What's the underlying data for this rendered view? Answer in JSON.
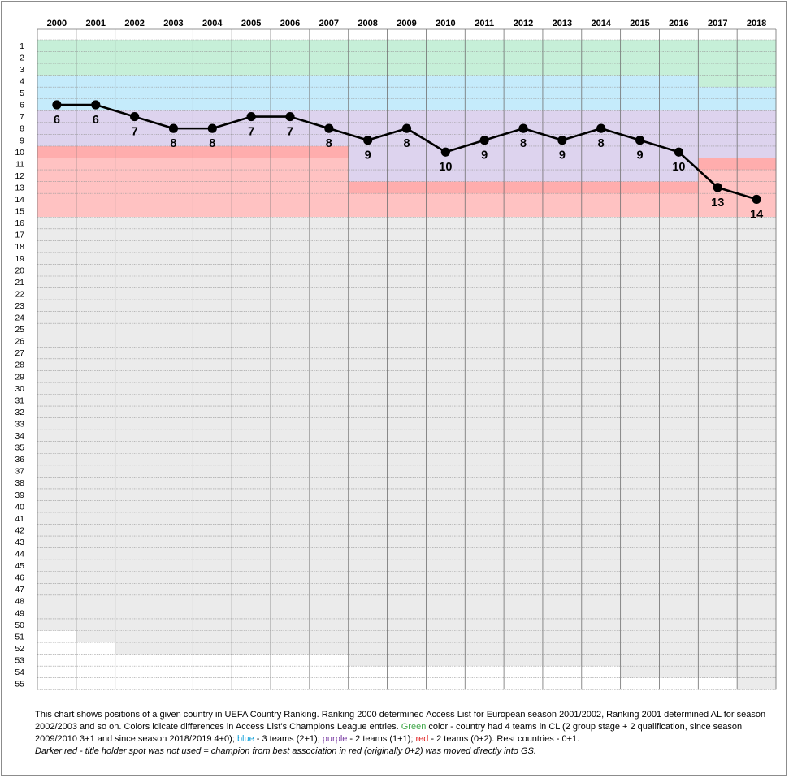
{
  "chart_data": {
    "type": "line",
    "title": "",
    "xlabel": "",
    "ylabel": "",
    "categories": [
      "2000",
      "2001",
      "2002",
      "2003",
      "2004",
      "2005",
      "2006",
      "2007",
      "2008",
      "2009",
      "2010",
      "2011",
      "2012",
      "2013",
      "2014",
      "2015",
      "2016",
      "2017",
      "2018"
    ],
    "y_ticks_range": [
      1,
      55
    ],
    "y_inverted": true,
    "series": [
      {
        "name": "Country ranking position",
        "values": [
          6,
          6,
          7,
          8,
          8,
          7,
          7,
          8,
          9,
          8,
          10,
          9,
          8,
          9,
          8,
          9,
          10,
          13,
          14
        ]
      }
    ],
    "data_labels": [
      "6",
      "6",
      "7",
      "8",
      "8",
      "7",
      "7",
      "8",
      "9",
      "8",
      "10",
      "9",
      "8",
      "9",
      "8",
      "9",
      "10",
      "13",
      "14"
    ],
    "bands": [
      {
        "category": "green",
        "color": "#c6efd8",
        "start_rank": [
          1,
          1,
          1,
          1,
          1,
          1,
          1,
          1,
          1,
          1,
          1,
          1,
          1,
          1,
          1,
          1,
          1,
          1,
          1
        ],
        "end_rank": [
          3,
          3,
          3,
          3,
          3,
          3,
          3,
          3,
          3,
          3,
          3,
          3,
          3,
          3,
          3,
          3,
          3,
          4,
          4
        ]
      },
      {
        "category": "blue",
        "color": "#c5ebfb",
        "start_rank": [
          4,
          4,
          4,
          4,
          4,
          4,
          4,
          4,
          4,
          4,
          4,
          4,
          4,
          4,
          4,
          4,
          4,
          5,
          5
        ],
        "end_rank": [
          6,
          6,
          6,
          6,
          6,
          6,
          6,
          6,
          6,
          6,
          6,
          6,
          6,
          6,
          6,
          6,
          6,
          6,
          6
        ]
      },
      {
        "category": "purple",
        "color": "#ddd3ee",
        "start_rank": [
          7,
          7,
          7,
          7,
          7,
          7,
          7,
          7,
          7,
          7,
          7,
          7,
          7,
          7,
          7,
          7,
          7,
          7,
          7
        ],
        "end_rank": [
          9,
          9,
          9,
          9,
          9,
          9,
          9,
          9,
          12,
          12,
          12,
          12,
          12,
          12,
          12,
          12,
          12,
          10,
          10
        ]
      },
      {
        "category": "red",
        "color": "#ffc2c2",
        "start_rank": [
          10,
          10,
          10,
          10,
          10,
          10,
          10,
          10,
          13,
          13,
          13,
          13,
          13,
          13,
          13,
          13,
          13,
          11,
          11
        ],
        "end_rank": [
          15,
          15,
          15,
          15,
          15,
          15,
          15,
          15,
          15,
          15,
          15,
          15,
          15,
          15,
          15,
          15,
          15,
          15,
          15
        ]
      },
      {
        "category": "darker-red",
        "color": "#ffadad",
        "start_rank": [
          10,
          10,
          10,
          10,
          10,
          10,
          10,
          10,
          13,
          13,
          13,
          13,
          13,
          13,
          13,
          13,
          13,
          11,
          11
        ],
        "end_rank": [
          10,
          10,
          10,
          10,
          10,
          10,
          10,
          10,
          13,
          13,
          13,
          13,
          13,
          13,
          13,
          13,
          13,
          11,
          11
        ]
      },
      {
        "category": "rest",
        "color": "#ebebeb",
        "start_rank": [
          16,
          16,
          16,
          16,
          16,
          16,
          16,
          16,
          16,
          16,
          16,
          16,
          16,
          16,
          16,
          16,
          16,
          16,
          16
        ],
        "end_rank": [
          50,
          51,
          52,
          52,
          52,
          52,
          52,
          52,
          53,
          53,
          53,
          53,
          53,
          53,
          53,
          54,
          54,
          54,
          55
        ]
      }
    ],
    "grid": true,
    "legend": "none"
  },
  "caption": {
    "intro": "This chart shows positions of a given country in  UEFA Country Ranking. Ranking 2000 determined Access List for European season 2001/2002, Ranking 2001 determined AL for season 2002/2003 and so on.  Colors idicate differences in Access List's Champions League entries.  ",
    "green_word": "Green",
    "green_text": " color - country had 4 teams in CL (2 group stage + 2 qualification, since season 2009/2010 3+1 and since season 2018/2019  4+0); ",
    "blue_word": "blue",
    "blue_text": " - 3 teams  (2+1); ",
    "purple_word": "purple",
    "purple_text": " - 2 teams (1+1); ",
    "red_word": "red",
    "red_text": " - 2 teams (0+2). Rest countries - 0+1.",
    "note": "Darker red - title holder spot was not used = champion from best association in red (originally 0+2) was moved directly  into GS."
  },
  "colors": {
    "green_text": "#3fa648",
    "blue_text": "#1aa3d9",
    "purple_text": "#7a3da3",
    "red_text": "#e02020"
  }
}
